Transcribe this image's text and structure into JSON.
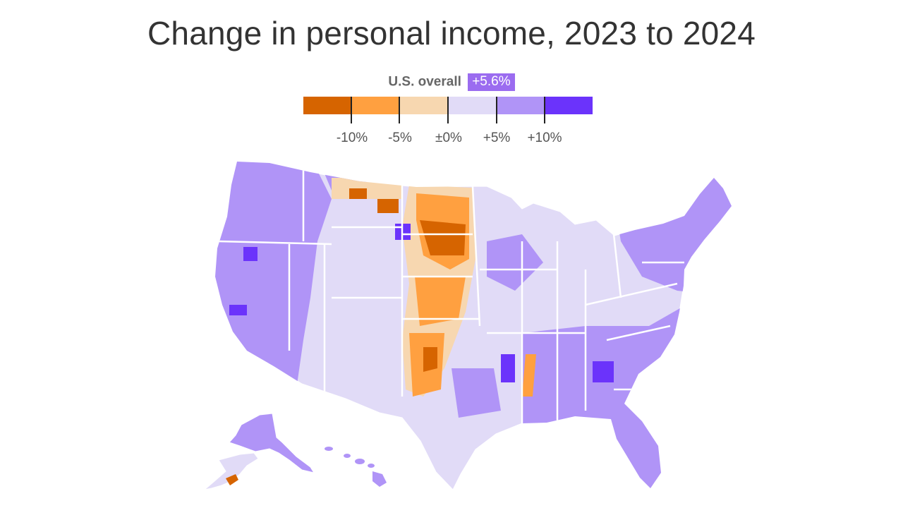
{
  "title": "Change in personal income, 2023 to 2024",
  "us_overall": {
    "label": "U.S. overall",
    "value": "+5.6%"
  },
  "legend": {
    "colors": [
      "#d66400",
      "#ffa040",
      "#f7d7b0",
      "#e1dbf7",
      "#b094f7",
      "#6b33fb"
    ],
    "ticks": [
      "-10%",
      "-5%",
      "±0%",
      "+5%",
      "+10%"
    ]
  },
  "map": {
    "region": "United States counties",
    "regions_shown": [
      "Lower 48 states",
      "Alaska",
      "Hawaii"
    ],
    "fill_colors": {
      "strong_decline": "#d66400",
      "decline": "#ffa040",
      "slight_decline": "#f7d7b0",
      "slight_increase": "#e1dbf7",
      "increase": "#b094f7",
      "strong_increase": "#6b33fb"
    }
  }
}
